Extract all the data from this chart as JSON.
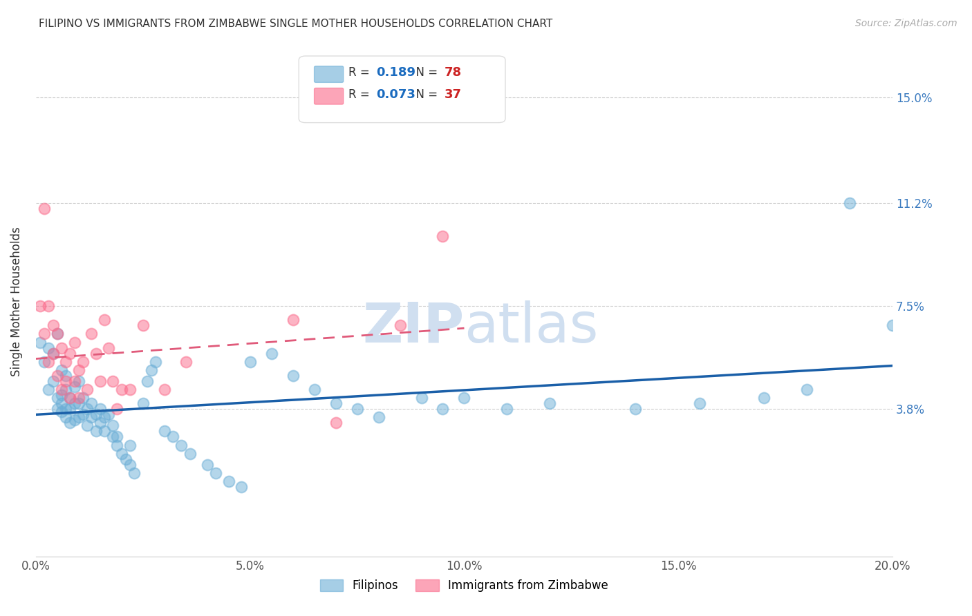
{
  "title": "FILIPINO VS IMMIGRANTS FROM ZIMBABWE SINGLE MOTHER HOUSEHOLDS CORRELATION CHART",
  "source": "Source: ZipAtlas.com",
  "ylabel": "Single Mother Households",
  "ytick_labels": [
    "3.8%",
    "7.5%",
    "11.2%",
    "15.0%"
  ],
  "ytick_values": [
    0.038,
    0.075,
    0.112,
    0.15
  ],
  "xlim": [
    0.0,
    0.2
  ],
  "ylim": [
    -0.015,
    0.168
  ],
  "filipino_R": 0.189,
  "filipino_N": 78,
  "zimbabwe_R": 0.073,
  "zimbabwe_N": 37,
  "filipino_color": "#6baed6",
  "zimbabwe_color": "#fb6a8a",
  "trend_blue": "#1a5fa8",
  "trend_pink": "#e05a7a",
  "watermark_zip": "ZIP",
  "watermark_atlas": "atlas",
  "watermark_color": "#d0dff0",
  "background_color": "#ffffff",
  "filipino_x": [
    0.001,
    0.002,
    0.003,
    0.003,
    0.004,
    0.004,
    0.005,
    0.005,
    0.005,
    0.006,
    0.006,
    0.006,
    0.006,
    0.007,
    0.007,
    0.007,
    0.007,
    0.008,
    0.008,
    0.008,
    0.009,
    0.009,
    0.009,
    0.01,
    0.01,
    0.01,
    0.011,
    0.011,
    0.012,
    0.012,
    0.013,
    0.013,
    0.014,
    0.014,
    0.015,
    0.015,
    0.016,
    0.016,
    0.017,
    0.018,
    0.018,
    0.019,
    0.019,
    0.02,
    0.021,
    0.022,
    0.022,
    0.023,
    0.025,
    0.026,
    0.027,
    0.028,
    0.03,
    0.032,
    0.034,
    0.036,
    0.04,
    0.042,
    0.045,
    0.048,
    0.05,
    0.055,
    0.06,
    0.065,
    0.07,
    0.075,
    0.08,
    0.09,
    0.095,
    0.1,
    0.11,
    0.12,
    0.14,
    0.155,
    0.17,
    0.18,
    0.19,
    0.2
  ],
  "filipino_y": [
    0.062,
    0.055,
    0.06,
    0.045,
    0.048,
    0.058,
    0.038,
    0.042,
    0.065,
    0.037,
    0.04,
    0.043,
    0.052,
    0.035,
    0.038,
    0.045,
    0.05,
    0.033,
    0.038,
    0.042,
    0.034,
    0.04,
    0.046,
    0.035,
    0.04,
    0.048,
    0.036,
    0.042,
    0.032,
    0.038,
    0.035,
    0.04,
    0.03,
    0.036,
    0.033,
    0.038,
    0.03,
    0.035,
    0.036,
    0.028,
    0.032,
    0.025,
    0.028,
    0.022,
    0.02,
    0.025,
    0.018,
    0.015,
    0.04,
    0.048,
    0.052,
    0.055,
    0.03,
    0.028,
    0.025,
    0.022,
    0.018,
    0.015,
    0.012,
    0.01,
    0.055,
    0.058,
    0.05,
    0.045,
    0.04,
    0.038,
    0.035,
    0.042,
    0.038,
    0.042,
    0.038,
    0.04,
    0.038,
    0.04,
    0.042,
    0.045,
    0.112,
    0.068
  ],
  "zimbabwe_x": [
    0.001,
    0.002,
    0.002,
    0.003,
    0.003,
    0.004,
    0.004,
    0.005,
    0.005,
    0.006,
    0.006,
    0.007,
    0.007,
    0.008,
    0.008,
    0.009,
    0.009,
    0.01,
    0.01,
    0.011,
    0.012,
    0.013,
    0.014,
    0.015,
    0.016,
    0.017,
    0.018,
    0.019,
    0.02,
    0.022,
    0.025,
    0.03,
    0.035,
    0.06,
    0.07,
    0.085,
    0.095
  ],
  "zimbabwe_y": [
    0.075,
    0.11,
    0.065,
    0.075,
    0.055,
    0.068,
    0.058,
    0.065,
    0.05,
    0.06,
    0.045,
    0.055,
    0.048,
    0.058,
    0.042,
    0.048,
    0.062,
    0.052,
    0.042,
    0.055,
    0.045,
    0.065,
    0.058,
    0.048,
    0.07,
    0.06,
    0.048,
    0.038,
    0.045,
    0.045,
    0.068,
    0.045,
    0.055,
    0.07,
    0.033,
    0.068,
    0.1
  ]
}
